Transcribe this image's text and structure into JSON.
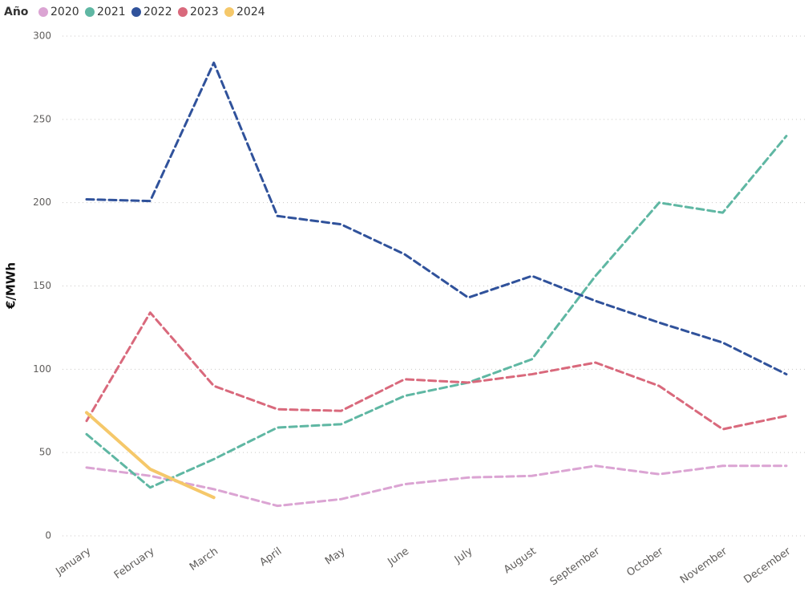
{
  "chart_data": {
    "type": "line",
    "legend_title": "Año",
    "y_label": "€/MWh",
    "categories": [
      "January",
      "February",
      "March",
      "April",
      "May",
      "June",
      "July",
      "August",
      "September",
      "October",
      "November",
      "December"
    ],
    "series": [
      {
        "name": "2020",
        "color": "#dba4d3",
        "dashed": true,
        "values": [
          41,
          36,
          28,
          18,
          22,
          31,
          35,
          36,
          42,
          37,
          42,
          42
        ]
      },
      {
        "name": "2021",
        "color": "#5fb7a3",
        "dashed": true,
        "values": [
          61,
          29,
          46,
          65,
          67,
          84,
          92,
          106,
          156,
          200,
          194,
          240
        ]
      },
      {
        "name": "2022",
        "color": "#30529b",
        "dashed": true,
        "values": [
          202,
          201,
          284,
          192,
          187,
          169,
          143,
          156,
          141,
          128,
          116,
          97
        ]
      },
      {
        "name": "2023",
        "color": "#d9697c",
        "dashed": true,
        "values": [
          69,
          134,
          90,
          76,
          75,
          94,
          92,
          97,
          104,
          90,
          64,
          72
        ]
      },
      {
        "name": "2024",
        "color": "#f5c86a",
        "dashed": false,
        "values": [
          74,
          40,
          23,
          null,
          null,
          null,
          null,
          null,
          null,
          null,
          null,
          null
        ]
      }
    ],
    "ylim": [
      0,
      300
    ],
    "yticks": [
      0,
      50,
      100,
      150,
      200,
      250,
      300
    ],
    "grid": true
  }
}
